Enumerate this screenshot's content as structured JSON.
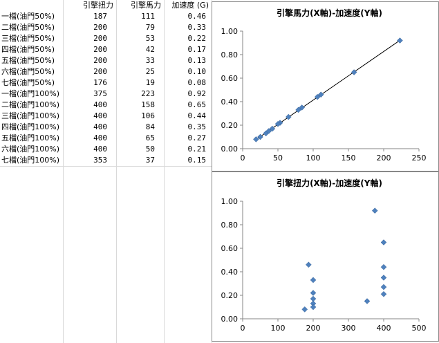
{
  "table": {
    "headers": [
      "",
      "引擎扭力",
      "引擎馬力",
      "加速度 (G)"
    ],
    "rows": [
      [
        "一檔(油門50%)",
        "187",
        "111",
        "0.46"
      ],
      [
        "二檔(油門50%)",
        "200",
        "79",
        "0.33"
      ],
      [
        "三檔(油門50%)",
        "200",
        "53",
        "0.22"
      ],
      [
        "四檔(油門50%)",
        "200",
        "42",
        "0.17"
      ],
      [
        "五檔(油門50%)",
        "200",
        "33",
        "0.13"
      ],
      [
        "六檔(油門50%)",
        "200",
        "25",
        "0.10"
      ],
      [
        "七檔(油門50%)",
        "176",
        "19",
        "0.08"
      ],
      [
        "一檔(油門100%)",
        "375",
        "223",
        "0.92"
      ],
      [
        "二檔(油門100%)",
        "400",
        "158",
        "0.65"
      ],
      [
        "三檔(油門100%)",
        "400",
        "106",
        "0.44"
      ],
      [
        "四檔(油門100%)",
        "400",
        "84",
        "0.35"
      ],
      [
        "五檔(油門100%)",
        "400",
        "65",
        "0.27"
      ],
      [
        "六檔(油門100%)",
        "400",
        "50",
        "0.21"
      ],
      [
        "七檔(油門100%)",
        "353",
        "37",
        "0.15"
      ]
    ]
  },
  "colors": {
    "marker": "#4f81bd",
    "trendline": "#000000",
    "grid": "#d9d9d9"
  },
  "chart_data": [
    {
      "type": "scatter",
      "title": "引擎馬力(X軸)-加速度(Y軸)",
      "xlim": [
        0,
        250
      ],
      "ylim": [
        0,
        1.0
      ],
      "xticks": [
        "0",
        "50",
        "100",
        "150",
        "200",
        "250"
      ],
      "yticks": [
        "0.00",
        "0.20",
        "0.40",
        "0.60",
        "0.80",
        "1.00"
      ],
      "trendline": true,
      "points": [
        [
          111,
          0.46
        ],
        [
          79,
          0.33
        ],
        [
          53,
          0.22
        ],
        [
          42,
          0.17
        ],
        [
          33,
          0.13
        ],
        [
          25,
          0.1
        ],
        [
          19,
          0.08
        ],
        [
          223,
          0.92
        ],
        [
          158,
          0.65
        ],
        [
          106,
          0.44
        ],
        [
          84,
          0.35
        ],
        [
          65,
          0.27
        ],
        [
          50,
          0.21
        ],
        [
          37,
          0.15
        ]
      ]
    },
    {
      "type": "scatter",
      "title": "引擎扭力(X軸)-加速度(Y軸)",
      "xlim": [
        0,
        500
      ],
      "ylim": [
        0,
        1.0
      ],
      "xticks": [
        "0",
        "100",
        "200",
        "300",
        "400",
        "500"
      ],
      "yticks": [
        "0.00",
        "0.20",
        "0.40",
        "0.60",
        "0.80",
        "1.00"
      ],
      "trendline": false,
      "points": [
        [
          187,
          0.46
        ],
        [
          200,
          0.33
        ],
        [
          200,
          0.22
        ],
        [
          200,
          0.17
        ],
        [
          200,
          0.13
        ],
        [
          200,
          0.1
        ],
        [
          176,
          0.08
        ],
        [
          375,
          0.92
        ],
        [
          400,
          0.65
        ],
        [
          400,
          0.44
        ],
        [
          400,
          0.35
        ],
        [
          400,
          0.27
        ],
        [
          400,
          0.21
        ],
        [
          353,
          0.15
        ]
      ]
    }
  ]
}
